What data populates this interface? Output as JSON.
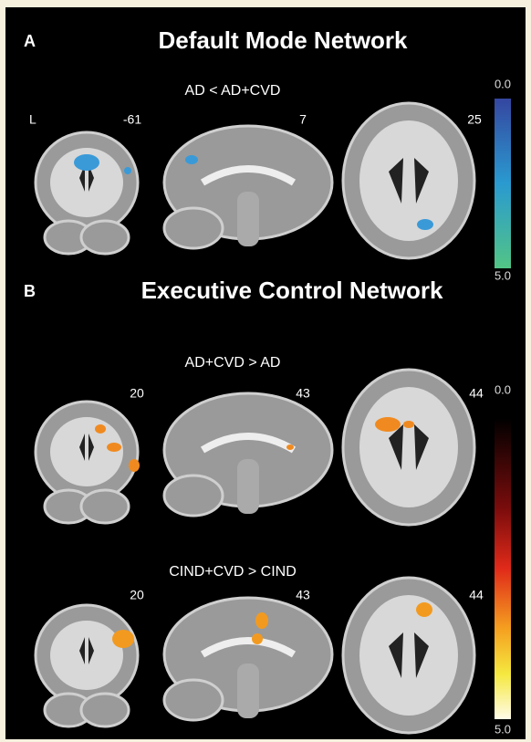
{
  "panel_a": {
    "label": "A",
    "title": "Default Mode Network",
    "contrast": "AD < AD+CVD",
    "side": "L",
    "slices": [
      "-61",
      "7",
      "25"
    ],
    "colorbar": {
      "min": "0.0",
      "max": "5.0"
    }
  },
  "panel_b": {
    "label": "B",
    "title": "Executive Control Network",
    "colorbar": {
      "min": "0.0",
      "max": "5.0"
    },
    "contrasts": [
      {
        "label": "AD+CVD > AD",
        "slices": [
          "20",
          "43",
          "44"
        ]
      },
      {
        "label": "CIND+CVD > CIND",
        "slices": [
          "20",
          "43",
          "44"
        ]
      }
    ]
  }
}
